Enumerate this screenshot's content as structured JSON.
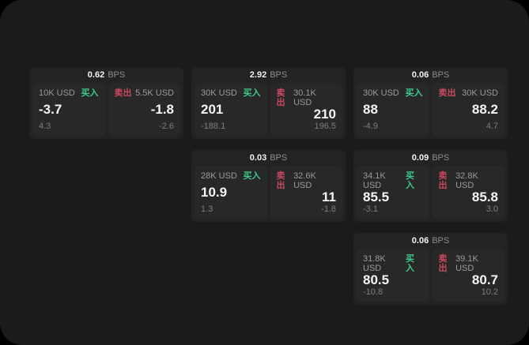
{
  "labels": {
    "bps_unit": "BPS",
    "buy": "买入",
    "sell": "卖出"
  },
  "colors": {
    "page_background": "#000000",
    "panel_background": "#1b1b1b",
    "card_background": "#232323",
    "tile_background": "#282828",
    "buy_green": "#3dcb8b",
    "sell_red": "#ca4960",
    "text_primary": "#f5f5f5",
    "text_secondary": "#9a9a9a",
    "text_tertiary": "#7e7e7e"
  },
  "cards": [
    {
      "bps": "0.62",
      "buy": {
        "size": "10K USD",
        "price": "-3.7",
        "delta": "4.3"
      },
      "sell": {
        "size": "5.5K USD",
        "price": "-1.8",
        "delta": "-2.6"
      }
    },
    {
      "bps": "2.92",
      "buy": {
        "size": "30K USD",
        "price": "201",
        "delta": "-188.1"
      },
      "sell": {
        "size": "30.1K USD",
        "price": "210",
        "delta": "196.5"
      }
    },
    {
      "bps": "0.06",
      "buy": {
        "size": "30K USD",
        "price": "88",
        "delta": "-4.9"
      },
      "sell": {
        "size": "30K USD",
        "price": "88.2",
        "delta": "4.7"
      }
    },
    {
      "bps": "0.03",
      "buy": {
        "size": "28K USD",
        "price": "10.9",
        "delta": "1.3"
      },
      "sell": {
        "size": "32.6K USD",
        "price": "11",
        "delta": "-1.8"
      }
    },
    {
      "bps": "0.09",
      "buy": {
        "size": "34.1K USD",
        "price": "85.5",
        "delta": "-3.1"
      },
      "sell": {
        "size": "32.8K USD",
        "price": "85.8",
        "delta": "3.0"
      }
    },
    {
      "bps": "0.06",
      "buy": {
        "size": "31.8K USD",
        "price": "80.5",
        "delta": "-10.8"
      },
      "sell": {
        "size": "39.1K USD",
        "price": "80.7",
        "delta": "10.2"
      }
    }
  ]
}
